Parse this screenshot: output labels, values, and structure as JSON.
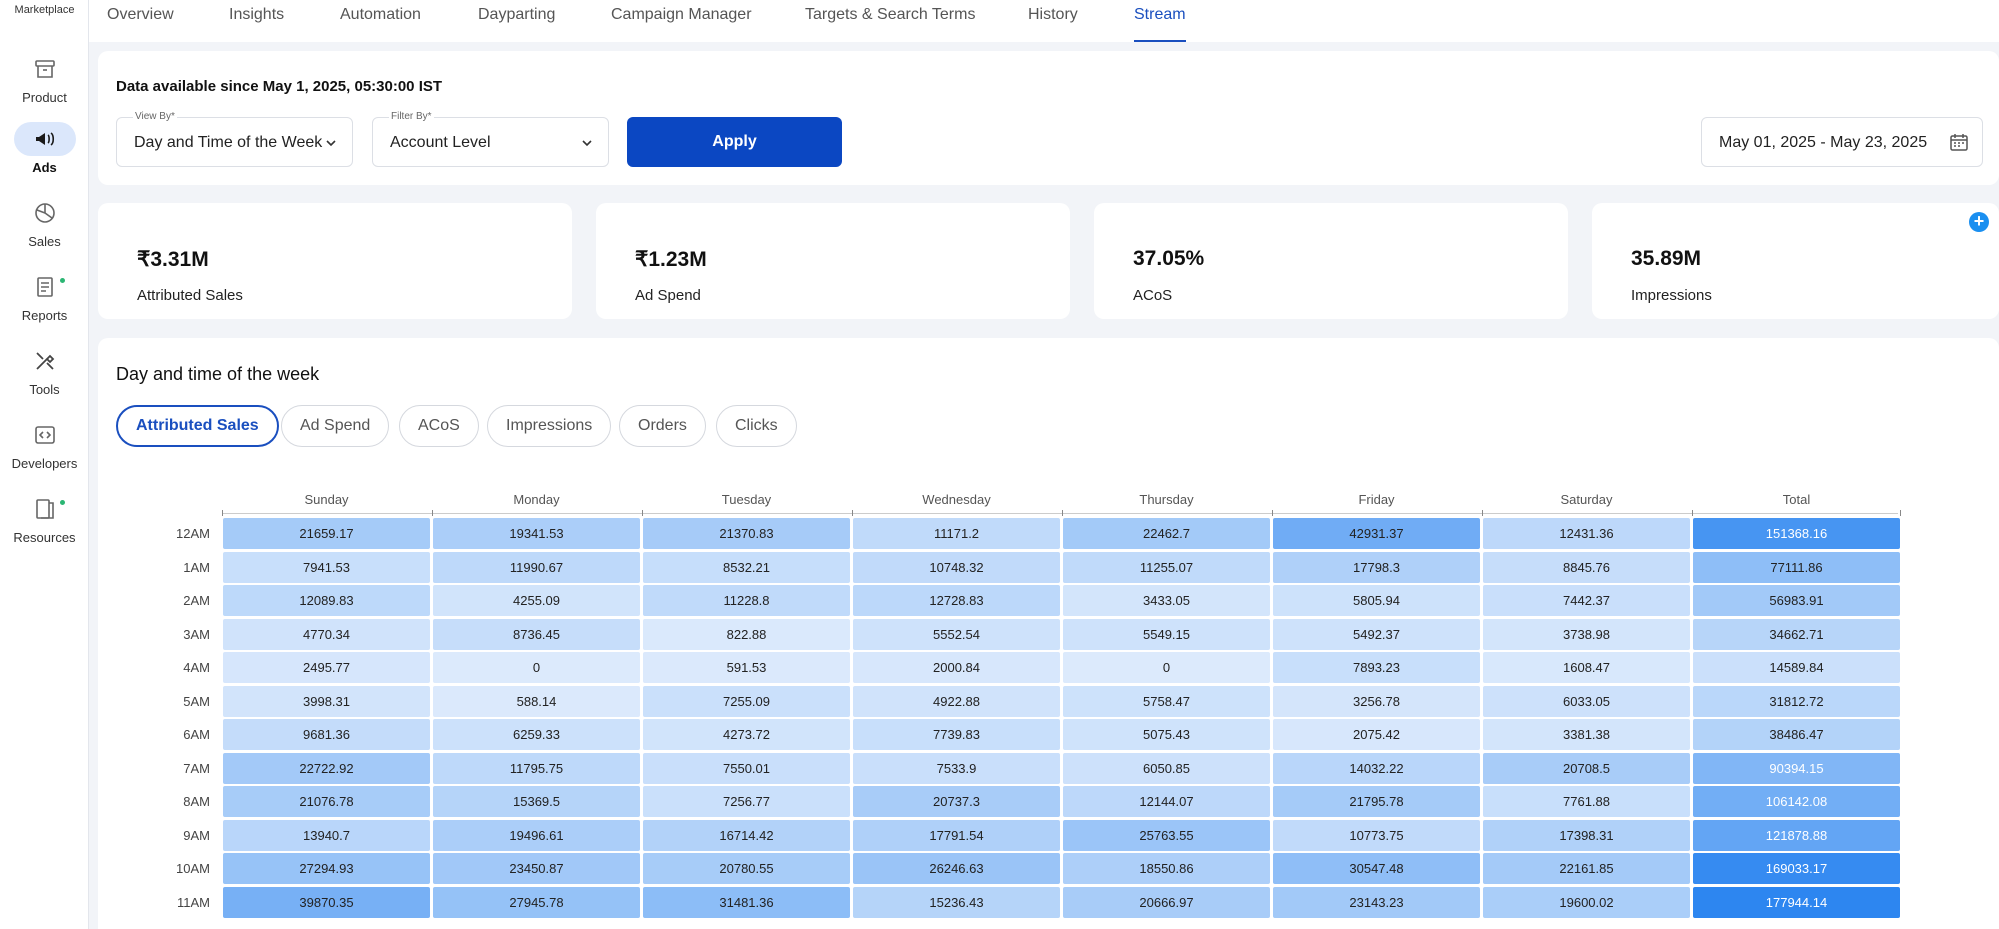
{
  "sidebar": {
    "top_label": "Marketplace",
    "items": [
      {
        "label": "Product",
        "icon": "archive-icon"
      },
      {
        "label": "Ads",
        "icon": "megaphone-icon",
        "active": true
      },
      {
        "label": "Sales",
        "icon": "pie-chart-icon"
      },
      {
        "label": "Reports",
        "icon": "document-icon",
        "dot": true
      },
      {
        "label": "Tools",
        "icon": "tools-icon"
      },
      {
        "label": "Developers",
        "icon": "code-icon"
      },
      {
        "label": "Resources",
        "icon": "book-icon",
        "dot": true
      }
    ]
  },
  "tabs": [
    "Overview",
    "Insights",
    "Automation",
    "Dayparting",
    "Campaign Manager",
    "Targets & Search Terms",
    "History",
    "Stream"
  ],
  "active_tab": "Stream",
  "filters": {
    "availability": "Data available since May 1, 2025, 05:30:00 IST",
    "view_by_label": "View By*",
    "view_by_value": "Day and Time of the Week",
    "filter_by_label": "Filter By*",
    "filter_by_value": "Account Level",
    "apply_label": "Apply",
    "date_range": "May 01, 2025 - May 23, 2025"
  },
  "kpis": [
    {
      "value": "₹3.31M",
      "label": "Attributed Sales"
    },
    {
      "value": "₹1.23M",
      "label": "Ad Spend"
    },
    {
      "value": "37.05%",
      "label": "ACoS"
    },
    {
      "value": "35.89M",
      "label": "Impressions"
    }
  ],
  "heatmap": {
    "title": "Day and time of the week",
    "metrics": [
      "Attributed Sales",
      "Ad Spend",
      "ACoS",
      "Impressions",
      "Orders",
      "Clicks"
    ],
    "active_metric": "Attributed Sales",
    "columns": [
      "Sunday",
      "Monday",
      "Tuesday",
      "Wednesday",
      "Thursday",
      "Friday",
      "Saturday",
      "Total"
    ],
    "colors": {
      "low": "#dceafc",
      "high": "#2d86f0"
    },
    "rows": [
      {
        "label": "12AM",
        "values": [
          "21659.17",
          "19341.53",
          "21370.83",
          "11171.2",
          "22462.7",
          "42931.37",
          "12431.36",
          "151368.16"
        ]
      },
      {
        "label": "1AM",
        "values": [
          "7941.53",
          "11990.67",
          "8532.21",
          "10748.32",
          "11255.07",
          "17798.3",
          "8845.76",
          "77111.86"
        ]
      },
      {
        "label": "2AM",
        "values": [
          "12089.83",
          "4255.09",
          "11228.8",
          "12728.83",
          "3433.05",
          "5805.94",
          "7442.37",
          "56983.91"
        ]
      },
      {
        "label": "3AM",
        "values": [
          "4770.34",
          "8736.45",
          "822.88",
          "5552.54",
          "5549.15",
          "5492.37",
          "3738.98",
          "34662.71"
        ]
      },
      {
        "label": "4AM",
        "values": [
          "2495.77",
          "0",
          "591.53",
          "2000.84",
          "0",
          "7893.23",
          "1608.47",
          "14589.84"
        ]
      },
      {
        "label": "5AM",
        "values": [
          "3998.31",
          "588.14",
          "7255.09",
          "4922.88",
          "5758.47",
          "3256.78",
          "6033.05",
          "31812.72"
        ]
      },
      {
        "label": "6AM",
        "values": [
          "9681.36",
          "6259.33",
          "4273.72",
          "7739.83",
          "5075.43",
          "2075.42",
          "3381.38",
          "38486.47"
        ]
      },
      {
        "label": "7AM",
        "values": [
          "22722.92",
          "11795.75",
          "7550.01",
          "7533.9",
          "6050.85",
          "14032.22",
          "20708.5",
          "90394.15"
        ]
      },
      {
        "label": "8AM",
        "values": [
          "21076.78",
          "15369.5",
          "7256.77",
          "20737.3",
          "12144.07",
          "21795.78",
          "7761.88",
          "106142.08"
        ]
      },
      {
        "label": "9AM",
        "values": [
          "13940.7",
          "19496.61",
          "16714.42",
          "17791.54",
          "25763.55",
          "10773.75",
          "17398.31",
          "121878.88"
        ]
      },
      {
        "label": "10AM",
        "values": [
          "27294.93",
          "23450.87",
          "20780.55",
          "26246.63",
          "18550.86",
          "30547.48",
          "22161.85",
          "169033.17"
        ]
      },
      {
        "label": "11AM",
        "values": [
          "39870.35",
          "27945.78",
          "31481.36",
          "15236.43",
          "20666.97",
          "23143.23",
          "19600.02",
          "177944.14"
        ]
      }
    ]
  }
}
